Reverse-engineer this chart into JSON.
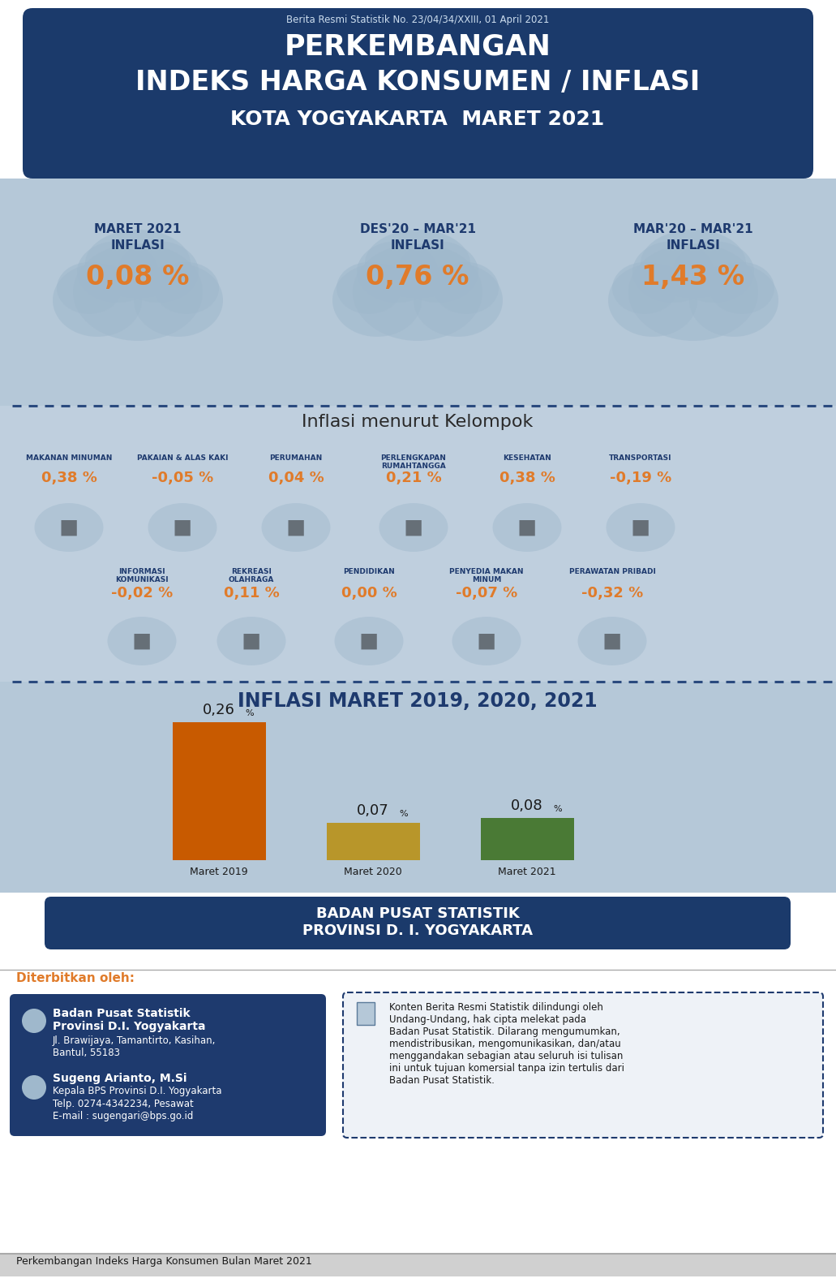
{
  "title_subtitle": "Berita Resmi Statistik No. 23/04/34/XXIII, 01 April 2021",
  "title_line1": "PERKEMBANGAN",
  "title_line2": "INDEKS HARGA KONSUMEN / INFLASI",
  "title_line3": "KOTA YOGYAKARTA  MARET 2021",
  "header_bg": "#1b3a6b",
  "main_bg": "#b5c8d8",
  "section3_bg": "#bfcfde",
  "section4_bg": "#b5c8d8",
  "orange_color": "#e07b2a",
  "dark_blue": "#1e3a6e",
  "inflasi_values": [
    "0,08 %",
    "0,76 %",
    "1,43 %"
  ],
  "inflasi_labels_line1": [
    "MARET 2021",
    "DES'20 – MAR'21",
    "MAR'20 – MAR'21"
  ],
  "inflasi_labels_line2": [
    "INFLASI",
    "INFLASI",
    "INFLASI"
  ],
  "inflasi_section_title": "Inflasi menurut Kelompok",
  "categories_row1": [
    "MAKANAN MINUMAN",
    "PAKAIAN & ALAS KAKI",
    "PERUMAHAN",
    "PERLENGKAPAN\nRUMAHTANGGA",
    "KESEHATAN",
    "TRANSPORTASI"
  ],
  "values_row1": [
    "0,38 %",
    "-0,05 %",
    "0,04 %",
    "0,21 %",
    "0,38 %",
    "-0,19 %"
  ],
  "categories_row2": [
    "INFORMASI\nKOMUNIKASI",
    "REKREASI\nOLAHRAGA",
    "PENDIDIKAN",
    "PENYEDIA MAKAN\nMINUM",
    "PERAWATAN PRIBADI"
  ],
  "values_row2": [
    "-0,02 %",
    "0,11 %",
    "0,00 %",
    "-0,07 %",
    "-0,32 %"
  ],
  "bar_title": "INFLASI MARET 2019, 2020, 2021",
  "bar_categories": [
    "Maret 2019",
    "Maret 2020",
    "Maret 2021"
  ],
  "bar_values": [
    0.26,
    0.07,
    0.08
  ],
  "bar_labels": [
    "0,26",
    "0,07",
    "0,08"
  ],
  "bar_colors": [
    "#c85a00",
    "#b8962a",
    "#4a7a35"
  ],
  "footer_bg": "#1b3a6b",
  "footer_text1": "BADAN PUSAT STATISTIK",
  "footer_text2": "PROVINSI D. I. YOGYAKARTA",
  "diterbitkan_label": "Diterbitkan oleh:",
  "publisher_name_line1": "Badan Pusat Statistik",
  "publisher_name_line2": "Provinsi D.I. Yogyakarta",
  "publisher_address": "Jl. Brawijaya, Tamantirto, Kasihan,\nBantul, 55183",
  "publisher_person": "Sugeng Arianto, M.Si",
  "publisher_role": "Kepala BPS Provinsi D.I. Yogyakarta",
  "publisher_contact": "Telp. 0274-4342234, Pesawat\nE-mail : sugengari@bps.go.id",
  "rights_text": "Konten Berita Resmi Statistik dilindungi oleh\nUndang-Undang, hak cipta melekat pada\nBadan Pusat Statistik. Dilarang mengumumkan,\nmendistribusikan, mengomunikasikan, dan/atau\nmenggandakan sebagian atau seluruh isi tulisan\nini untuk tujuan komersial tanpa izin tertulis dari\nBadan Pusat Statistik.",
  "bottom_footer": "Perkembangan Indeks Harga Konsumen Bulan Maret 2021",
  "dashed_line_color": "#2a4a7e",
  "cloud_color": "#9fb8cc",
  "white": "#ffffff",
  "gray_line": "#aaaaaa"
}
